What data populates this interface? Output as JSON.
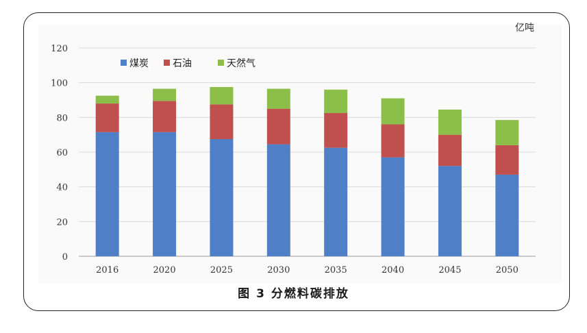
{
  "caption": "图 3 分燃料碳排放",
  "chart_data": {
    "type": "bar",
    "stacked": true,
    "unit": "亿吨",
    "categories": [
      "2016",
      "2020",
      "2025",
      "2030",
      "2035",
      "2040",
      "2045",
      "2050"
    ],
    "series": [
      {
        "name": "煤炭",
        "color": "#4f7fc6",
        "values": [
          71.5,
          71.5,
          67.5,
          64.5,
          62.5,
          57,
          52,
          47
        ]
      },
      {
        "name": "石油",
        "color": "#c0504d",
        "values": [
          16.5,
          18,
          20,
          20.5,
          20,
          19,
          18,
          17
        ]
      },
      {
        "name": "天然气",
        "color": "#8bbf4a",
        "values": [
          4.5,
          7,
          10,
          11.5,
          13.5,
          15,
          14.5,
          14.5
        ]
      }
    ],
    "ylim": [
      0,
      120
    ],
    "yticks": [
      "0",
      "20",
      "40",
      "60",
      "80",
      "100",
      "120"
    ],
    "grid": true,
    "legend_position": "top-left"
  }
}
